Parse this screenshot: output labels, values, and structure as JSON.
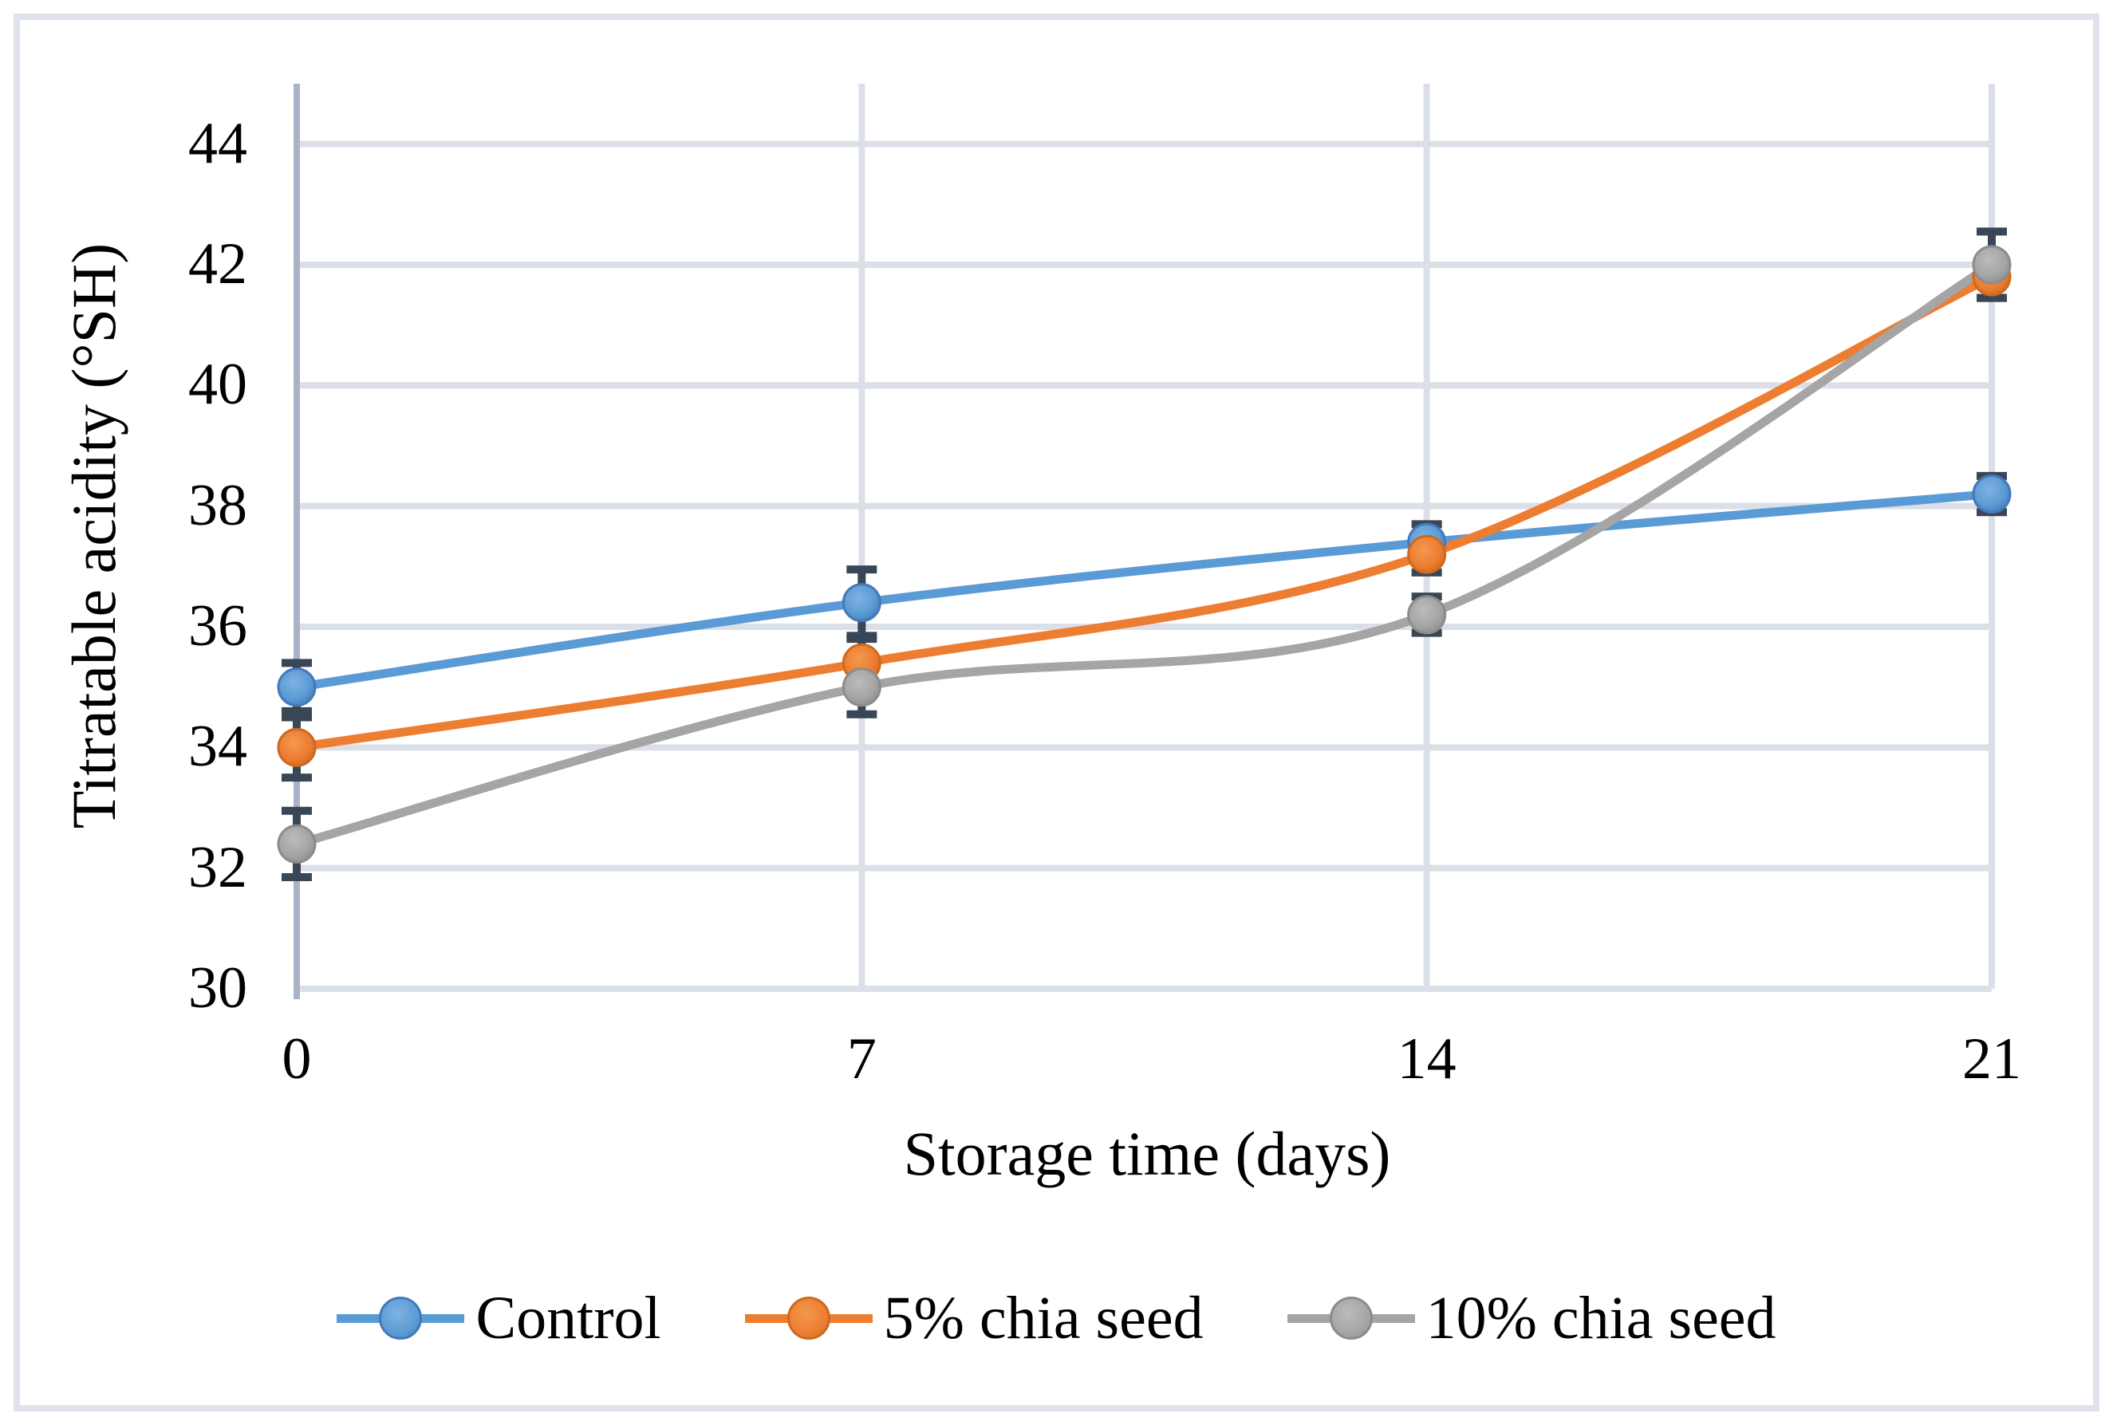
{
  "chart_data": {
    "type": "line",
    "title": "",
    "xlabel": "Storage time (days)",
    "ylabel": "Titratable acidity (°SH)",
    "categories": [
      "0",
      "7",
      "14",
      "21"
    ],
    "yticks": [
      30,
      32,
      34,
      36,
      38,
      40,
      42,
      44
    ],
    "ylim": [
      30,
      45
    ],
    "grid": true,
    "legend_position": "bottom",
    "line_style": "smooth",
    "marker": "circle",
    "error_bars": true,
    "series": [
      {
        "name": "Control",
        "values": [
          35.0,
          36.4,
          37.4,
          38.2
        ],
        "errors": [
          0.4,
          0.55,
          0.3,
          0.3
        ],
        "color": "#5B9BD5",
        "color_light": "#7FB2E1",
        "color_dark": "#4379B8"
      },
      {
        "name": "5% chia seed",
        "values": [
          34.0,
          35.4,
          37.2,
          41.8
        ],
        "errors": [
          0.5,
          0.4,
          0.3,
          0.35
        ],
        "color": "#ED7D31",
        "color_light": "#F2994F",
        "color_dark": "#CB6A20"
      },
      {
        "name": "10% chia seed",
        "values": [
          32.4,
          35.0,
          36.2,
          42.0
        ],
        "errors": [
          0.55,
          0.45,
          0.3,
          0.55
        ],
        "color": "#A5A5A5",
        "color_light": "#BBBBBB",
        "color_dark": "#8C8C8C"
      }
    ],
    "colors": {
      "error_bar": "#394656",
      "gridline": "#DBDFE8",
      "y_axis_line": "#A9B3C7",
      "x_axis_line": "#DBDFE8",
      "outer_border": "#DEE2EB",
      "text": "#000000",
      "background": "#FFFFFF"
    }
  }
}
